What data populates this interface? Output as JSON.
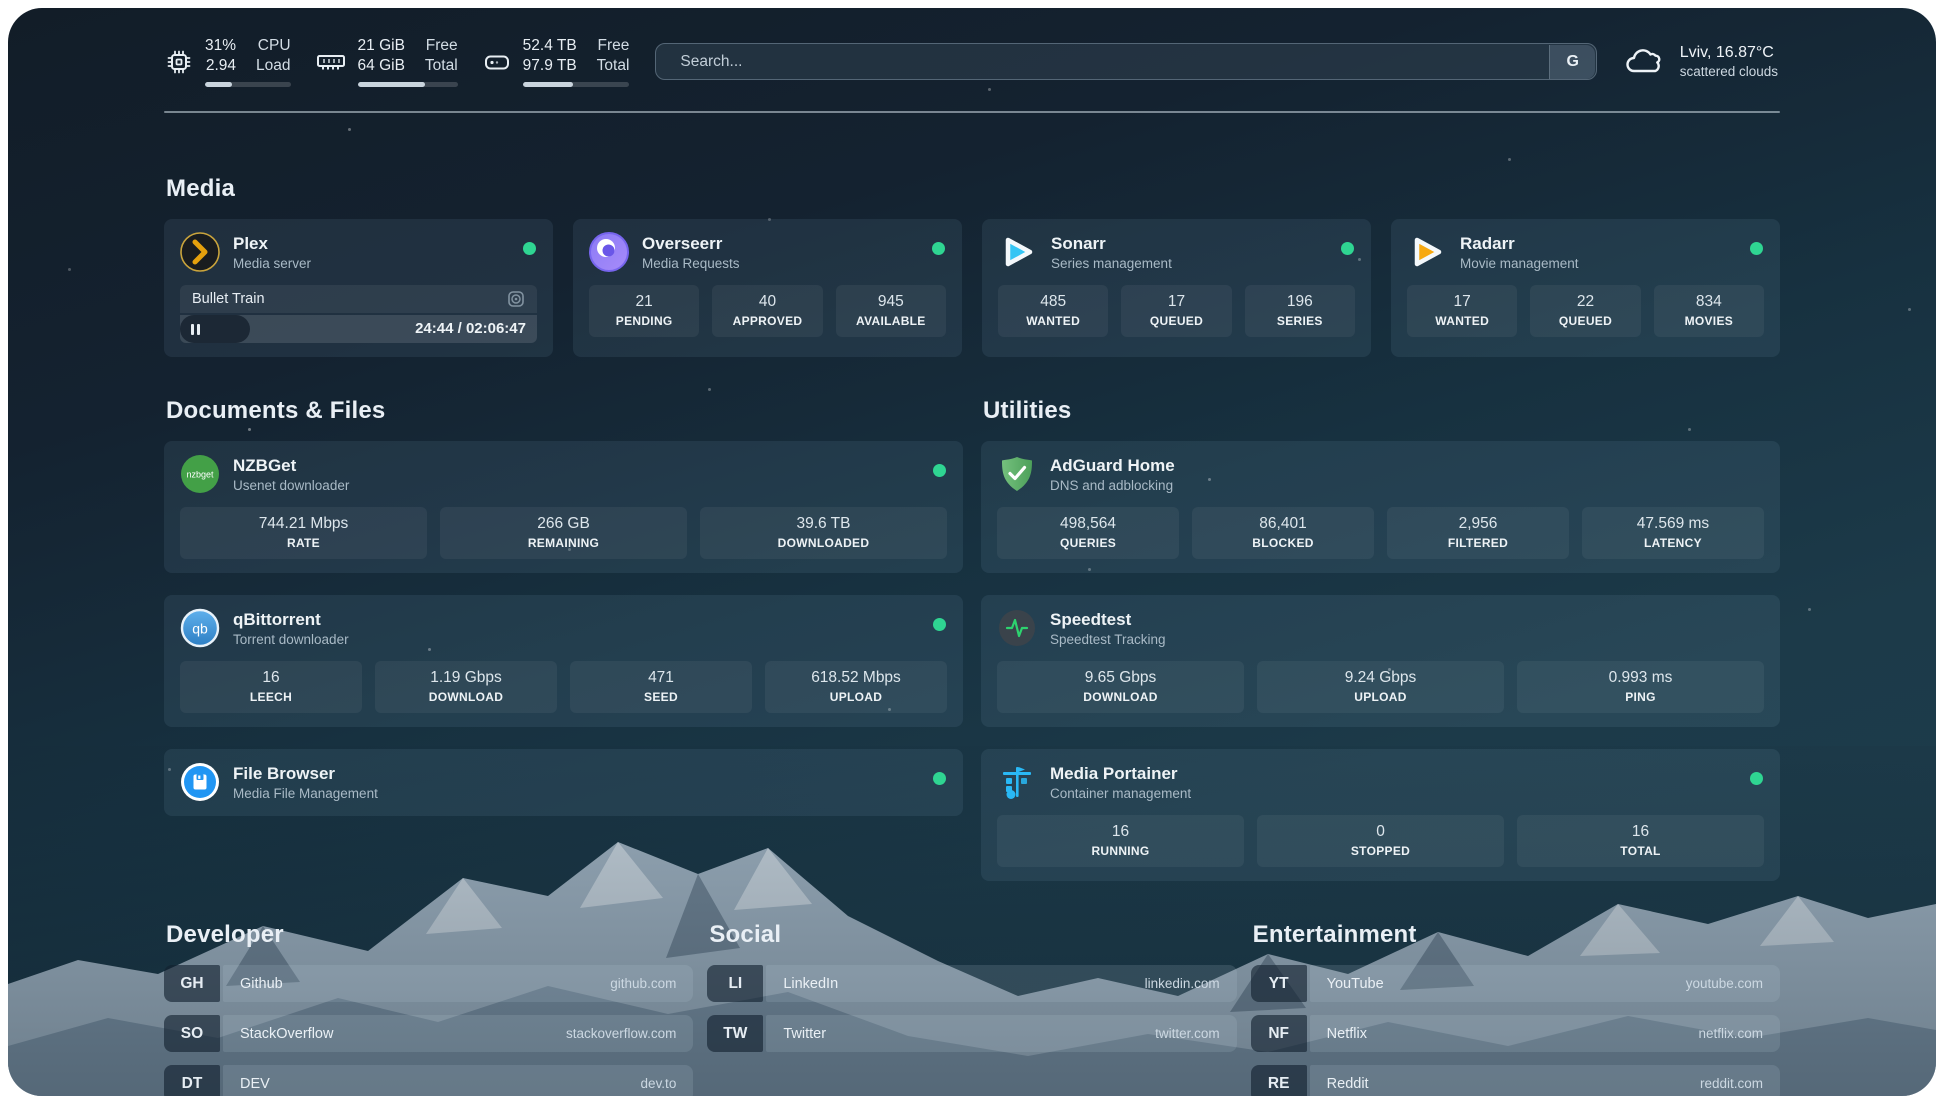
{
  "colors": {
    "status_green": "#2fd592",
    "plex_amber": "#e5a00d",
    "sonarr_cyan": "#35c5f4",
    "radarr_amber": "#f7a910",
    "adguard_green": "#67b279",
    "portainer_blue": "#29b8f5"
  },
  "header": {
    "cpu": {
      "value_top": "31%",
      "value_bottom": "2.94",
      "label_top": "CPU",
      "label_bottom": "Load",
      "bar_pct": 31
    },
    "memory": {
      "value_top": "21 GiB",
      "value_bottom": "64 GiB",
      "label_top": "Free",
      "label_bottom": "Total",
      "bar_pct": 67
    },
    "disk": {
      "value_top": "52.4 TB",
      "value_bottom": "97.9 TB",
      "label_top": "Free",
      "label_bottom": "Total",
      "bar_pct": 47
    },
    "search": {
      "placeholder": "Search...",
      "provider_label": "G"
    },
    "weather": {
      "location_temp": "Lviv, 16.87°C",
      "condition": "scattered clouds"
    }
  },
  "media": {
    "title": "Media",
    "plex": {
      "name": "Plex",
      "desc": "Media server",
      "now_playing": "Bullet Train",
      "time": "24:44 / 02:06:47",
      "progress_pct": 19.5
    },
    "overseerr": {
      "name": "Overseerr",
      "desc": "Media Requests",
      "stats": [
        {
          "value": "21",
          "label": "PENDING"
        },
        {
          "value": "40",
          "label": "APPROVED"
        },
        {
          "value": "945",
          "label": "AVAILABLE"
        }
      ]
    },
    "sonarr": {
      "name": "Sonarr",
      "desc": "Series management",
      "stats": [
        {
          "value": "485",
          "label": "WANTED"
        },
        {
          "value": "17",
          "label": "QUEUED"
        },
        {
          "value": "196",
          "label": "SERIES"
        }
      ]
    },
    "radarr": {
      "name": "Radarr",
      "desc": "Movie management",
      "stats": [
        {
          "value": "17",
          "label": "WANTED"
        },
        {
          "value": "22",
          "label": "QUEUED"
        },
        {
          "value": "834",
          "label": "MOVIES"
        }
      ]
    }
  },
  "documents": {
    "title": "Documents & Files",
    "nzbget": {
      "name": "NZBGet",
      "desc": "Usenet downloader",
      "logo_text": "nzbget",
      "stats": [
        {
          "value": "744.21 Mbps",
          "label": "RATE"
        },
        {
          "value": "266 GB",
          "label": "REMAINING"
        },
        {
          "value": "39.6 TB",
          "label": "DOWNLOADED"
        }
      ]
    },
    "qbittorrent": {
      "name": "qBittorrent",
      "desc": "Torrent downloader",
      "logo_text": "qb",
      "stats": [
        {
          "value": "16",
          "label": "LEECH"
        },
        {
          "value": "1.19 Gbps",
          "label": "DOWNLOAD"
        },
        {
          "value": "471",
          "label": "SEED"
        },
        {
          "value": "618.52 Mbps",
          "label": "UPLOAD"
        }
      ]
    },
    "filebrowser": {
      "name": "File Browser",
      "desc": "Media File Management"
    }
  },
  "utilities": {
    "title": "Utilities",
    "adguard": {
      "name": "AdGuard Home",
      "desc": "DNS and adblocking",
      "stats": [
        {
          "value": "498,564",
          "label": "QUERIES"
        },
        {
          "value": "86,401",
          "label": "BLOCKED"
        },
        {
          "value": "2,956",
          "label": "FILTERED"
        },
        {
          "value": "47.569 ms",
          "label": "LATENCY"
        }
      ]
    },
    "speedtest": {
      "name": "Speedtest",
      "desc": "Speedtest Tracking",
      "stats": [
        {
          "value": "9.65 Gbps",
          "label": "DOWNLOAD"
        },
        {
          "value": "9.24 Gbps",
          "label": "UPLOAD"
        },
        {
          "value": "0.993 ms",
          "label": "PING"
        }
      ]
    },
    "portainer": {
      "name": "Media Portainer",
      "desc": "Container management",
      "stats": [
        {
          "value": "16",
          "label": "RUNNING"
        },
        {
          "value": "0",
          "label": "STOPPED"
        },
        {
          "value": "16",
          "label": "TOTAL"
        }
      ]
    }
  },
  "bookmarks": {
    "developer": {
      "title": "Developer",
      "items": [
        {
          "abbr": "GH",
          "name": "Github",
          "url": "github.com"
        },
        {
          "abbr": "SO",
          "name": "StackOverflow",
          "url": "stackoverflow.com"
        },
        {
          "abbr": "DT",
          "name": "DEV",
          "url": "dev.to"
        }
      ]
    },
    "social": {
      "title": "Social",
      "items": [
        {
          "abbr": "LI",
          "name": "LinkedIn",
          "url": "linkedin.com"
        },
        {
          "abbr": "TW",
          "name": "Twitter",
          "url": "twitter.com"
        }
      ]
    },
    "entertainment": {
      "title": "Entertainment",
      "items": [
        {
          "abbr": "YT",
          "name": "YouTube",
          "url": "youtube.com"
        },
        {
          "abbr": "NF",
          "name": "Netflix",
          "url": "netflix.com"
        },
        {
          "abbr": "RE",
          "name": "Reddit",
          "url": "reddit.com"
        }
      ]
    }
  }
}
